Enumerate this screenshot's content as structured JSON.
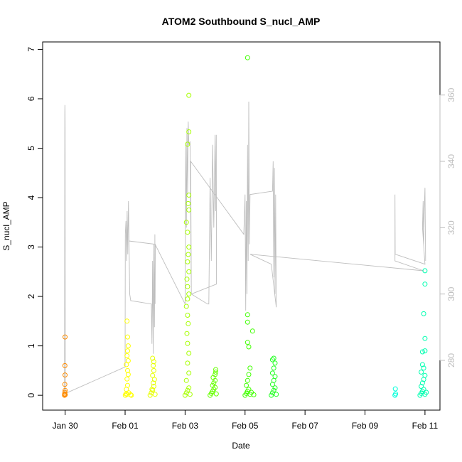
{
  "chart_data": {
    "type": "scatter",
    "title": "ATOM2 Southbound S_nucl_AMP",
    "xlabel": "Date",
    "ylabel": "S_nucl_AMP",
    "x_range": [
      "2023-01-29T06:00",
      "2023-02-11T12:00"
    ],
    "xticks": [
      {
        "x": "2023-01-30T00:00",
        "label": "Jan 30"
      },
      {
        "x": "2023-02-01T00:00",
        "label": "Feb 01"
      },
      {
        "x": "2023-02-03T00:00",
        "label": "Feb 03"
      },
      {
        "x": "2023-02-05T00:00",
        "label": "Feb 05"
      },
      {
        "x": "2023-02-07T00:00",
        "label": "Feb 07"
      },
      {
        "x": "2023-02-09T00:00",
        "label": "Feb 09"
      },
      {
        "x": "2023-02-11T00:00",
        "label": "Feb 11"
      }
    ],
    "ylim": [
      -0.3,
      7.15
    ],
    "yticks": [
      0,
      1,
      2,
      3,
      4,
      5,
      6,
      7
    ],
    "y2lim": [
      265,
      376
    ],
    "y2ticks": [
      280,
      300,
      320,
      340,
      360
    ],
    "grid": false,
    "legend": "none",
    "scatter_series": [
      {
        "color": "#ff8c00",
        "points": [
          {
            "x": "2023-01-29T23:30",
            "y": 0.0
          },
          {
            "x": "2023-01-29T23:40",
            "y": 0.03
          },
          {
            "x": "2023-01-29T23:50",
            "y": 0.06
          },
          {
            "x": "2023-01-30T00:00",
            "y": 0.1
          },
          {
            "x": "2023-01-29T23:45",
            "y": 0.22
          },
          {
            "x": "2023-01-29T23:55",
            "y": 0.41
          },
          {
            "x": "2023-01-29T23:50",
            "y": 0.6
          },
          {
            "x": "2023-01-29T23:55",
            "y": 1.18
          },
          {
            "x": "2023-01-29T23:35",
            "y": 0.02
          },
          {
            "x": "2023-01-30T00:05",
            "y": 0.01
          }
        ]
      },
      {
        "color": "#ffff00",
        "points": [
          {
            "x": "2023-02-01T00:10",
            "y": 0.0
          },
          {
            "x": "2023-02-01T01:30",
            "y": 0.02
          },
          {
            "x": "2023-02-01T03:00",
            "y": 0.05
          },
          {
            "x": "2023-02-01T04:30",
            "y": 0.01
          },
          {
            "x": "2023-02-01T01:00",
            "y": 0.12
          },
          {
            "x": "2023-02-01T02:00",
            "y": 0.2
          },
          {
            "x": "2023-02-01T01:30",
            "y": 0.33
          },
          {
            "x": "2023-02-01T02:30",
            "y": 0.42
          },
          {
            "x": "2023-02-01T02:00",
            "y": 0.5
          },
          {
            "x": "2023-02-01T01:00",
            "y": 0.62
          },
          {
            "x": "2023-02-01T02:30",
            "y": 0.7
          },
          {
            "x": "2023-02-01T01:30",
            "y": 0.8
          },
          {
            "x": "2023-02-01T02:00",
            "y": 0.9
          },
          {
            "x": "2023-02-01T02:30",
            "y": 1.0
          },
          {
            "x": "2023-02-01T02:00",
            "y": 1.18
          },
          {
            "x": "2023-02-01T01:30",
            "y": 1.5
          },
          {
            "x": "2023-02-01T05:00",
            "y": 0.0
          },
          {
            "x": "2023-02-01T00:40",
            "y": 0.03
          }
        ]
      },
      {
        "color": "#e6ff00",
        "points": [
          {
            "x": "2023-02-01T20:00",
            "y": 0.0
          },
          {
            "x": "2023-02-01T21:00",
            "y": 0.05
          },
          {
            "x": "2023-02-01T22:00",
            "y": 0.1
          },
          {
            "x": "2023-02-01T23:00",
            "y": 0.18
          },
          {
            "x": "2023-02-01T22:30",
            "y": 0.25
          },
          {
            "x": "2023-02-01T23:30",
            "y": 0.32
          },
          {
            "x": "2023-02-01T22:00",
            "y": 0.4
          },
          {
            "x": "2023-02-01T23:00",
            "y": 0.5
          },
          {
            "x": "2023-02-01T22:30",
            "y": 0.6
          },
          {
            "x": "2023-02-01T23:00",
            "y": 0.68
          },
          {
            "x": "2023-02-01T22:00",
            "y": 0.75
          },
          {
            "x": "2023-02-02T00:00",
            "y": 0.02
          },
          {
            "x": "2023-02-01T21:30",
            "y": 0.12
          }
        ]
      },
      {
        "color": "#a6ff00",
        "points": [
          {
            "x": "2023-02-03T00:00",
            "y": 0.0
          },
          {
            "x": "2023-02-03T01:00",
            "y": 0.05
          },
          {
            "x": "2023-02-03T02:00",
            "y": 0.1
          },
          {
            "x": "2023-02-03T03:00",
            "y": 0.15
          },
          {
            "x": "2023-02-03T01:00",
            "y": 0.3
          },
          {
            "x": "2023-02-03T03:00",
            "y": 0.45
          },
          {
            "x": "2023-02-03T02:00",
            "y": 0.65
          },
          {
            "x": "2023-02-03T03:00",
            "y": 0.85
          },
          {
            "x": "2023-02-03T02:00",
            "y": 1.05
          },
          {
            "x": "2023-02-03T01:30",
            "y": 1.25
          },
          {
            "x": "2023-02-03T02:30",
            "y": 1.45
          },
          {
            "x": "2023-02-03T02:00",
            "y": 1.62
          },
          {
            "x": "2023-02-03T01:00",
            "y": 1.8
          },
          {
            "x": "2023-02-03T02:00",
            "y": 1.95
          },
          {
            "x": "2023-02-03T03:00",
            "y": 2.05
          },
          {
            "x": "2023-02-03T02:00",
            "y": 2.2
          },
          {
            "x": "2023-02-03T01:30",
            "y": 2.35
          },
          {
            "x": "2023-02-03T03:00",
            "y": 2.5
          },
          {
            "x": "2023-02-03T02:00",
            "y": 2.7
          },
          {
            "x": "2023-02-03T02:30",
            "y": 2.85
          },
          {
            "x": "2023-02-03T03:00",
            "y": 3.0
          },
          {
            "x": "2023-02-03T02:00",
            "y": 3.3
          },
          {
            "x": "2023-02-03T01:00",
            "y": 3.5
          },
          {
            "x": "2023-02-03T03:00",
            "y": 3.75
          },
          {
            "x": "2023-02-03T02:30",
            "y": 3.88
          },
          {
            "x": "2023-02-03T03:00",
            "y": 4.05
          },
          {
            "x": "2023-02-03T02:00",
            "y": 5.08
          },
          {
            "x": "2023-02-03T03:00",
            "y": 5.33
          },
          {
            "x": "2023-02-03T03:00",
            "y": 6.07
          },
          {
            "x": "2023-02-03T04:00",
            "y": 0.02
          }
        ]
      },
      {
        "color": "#66ff00",
        "points": [
          {
            "x": "2023-02-03T20:00",
            "y": 0.0
          },
          {
            "x": "2023-02-03T21:00",
            "y": 0.04
          },
          {
            "x": "2023-02-03T22:00",
            "y": 0.08
          },
          {
            "x": "2023-02-03T23:00",
            "y": 0.12
          },
          {
            "x": "2023-02-04T00:00",
            "y": 0.16
          },
          {
            "x": "2023-02-03T22:00",
            "y": 0.2
          },
          {
            "x": "2023-02-03T23:00",
            "y": 0.25
          },
          {
            "x": "2023-02-04T00:00",
            "y": 0.3
          },
          {
            "x": "2023-02-03T22:30",
            "y": 0.36
          },
          {
            "x": "2023-02-04T00:00",
            "y": 0.42
          },
          {
            "x": "2023-02-04T00:30",
            "y": 0.47
          },
          {
            "x": "2023-02-04T00:30",
            "y": 0.52
          },
          {
            "x": "2023-02-04T01:00",
            "y": 0.03
          }
        ]
      },
      {
        "color": "#40ff00",
        "points": [
          {
            "x": "2023-02-05T00:00",
            "y": 0.0
          },
          {
            "x": "2023-02-05T01:00",
            "y": 0.04
          },
          {
            "x": "2023-02-05T02:00",
            "y": 0.08
          },
          {
            "x": "2023-02-05T03:00",
            "y": 0.12
          },
          {
            "x": "2023-02-05T04:00",
            "y": 0.02
          },
          {
            "x": "2023-02-05T05:00",
            "y": 0.06
          },
          {
            "x": "2023-02-05T01:00",
            "y": 0.2
          },
          {
            "x": "2023-02-05T02:00",
            "y": 0.3
          },
          {
            "x": "2023-02-05T03:00",
            "y": 0.42
          },
          {
            "x": "2023-02-05T04:00",
            "y": 0.55
          },
          {
            "x": "2023-02-05T03:00",
            "y": 0.98
          },
          {
            "x": "2023-02-05T02:00",
            "y": 1.07
          },
          {
            "x": "2023-02-05T06:00",
            "y": 1.3
          },
          {
            "x": "2023-02-05T02:00",
            "y": 1.48
          },
          {
            "x": "2023-02-05T02:00",
            "y": 1.63
          },
          {
            "x": "2023-02-05T02:00",
            "y": 6.83
          },
          {
            "x": "2023-02-05T07:00",
            "y": 0.01
          }
        ]
      },
      {
        "color": "#20ff20",
        "points": [
          {
            "x": "2023-02-05T21:00",
            "y": 0.0
          },
          {
            "x": "2023-02-05T22:00",
            "y": 0.05
          },
          {
            "x": "2023-02-05T23:00",
            "y": 0.1
          },
          {
            "x": "2023-02-06T00:00",
            "y": 0.15
          },
          {
            "x": "2023-02-05T22:00",
            "y": 0.22
          },
          {
            "x": "2023-02-05T23:00",
            "y": 0.3
          },
          {
            "x": "2023-02-06T00:00",
            "y": 0.38
          },
          {
            "x": "2023-02-05T22:00",
            "y": 0.45
          },
          {
            "x": "2023-02-05T23:00",
            "y": 0.55
          },
          {
            "x": "2023-02-06T00:00",
            "y": 0.65
          },
          {
            "x": "2023-02-05T23:00",
            "y": 0.75
          },
          {
            "x": "2023-02-05T22:00",
            "y": 0.72
          },
          {
            "x": "2023-02-06T01:00",
            "y": 0.02
          }
        ]
      },
      {
        "color": "#00ffd9",
        "points": [
          {
            "x": "2023-02-10T00:00",
            "y": 0.0
          },
          {
            "x": "2023-02-10T00:30",
            "y": 0.03
          },
          {
            "x": "2023-02-10T00:15",
            "y": 0.13
          }
        ]
      },
      {
        "color": "#00ffb0",
        "points": [
          {
            "x": "2023-02-10T20:00",
            "y": 0.0
          },
          {
            "x": "2023-02-10T21:00",
            "y": 0.04
          },
          {
            "x": "2023-02-10T22:00",
            "y": 0.08
          },
          {
            "x": "2023-02-10T23:00",
            "y": 0.12
          },
          {
            "x": "2023-02-11T00:00",
            "y": 0.02
          },
          {
            "x": "2023-02-11T01:00",
            "y": 0.06
          },
          {
            "x": "2023-02-10T21:00",
            "y": 0.18
          },
          {
            "x": "2023-02-10T22:00",
            "y": 0.25
          },
          {
            "x": "2023-02-10T23:00",
            "y": 0.32
          },
          {
            "x": "2023-02-11T00:00",
            "y": 0.4
          },
          {
            "x": "2023-02-10T21:00",
            "y": 0.47
          },
          {
            "x": "2023-02-10T23:00",
            "y": 0.55
          },
          {
            "x": "2023-02-10T22:00",
            "y": 0.62
          },
          {
            "x": "2023-02-10T22:00",
            "y": 0.88
          },
          {
            "x": "2023-02-11T00:00",
            "y": 0.9
          },
          {
            "x": "2023-02-11T00:00",
            "y": 1.15
          },
          {
            "x": "2023-02-10T23:00",
            "y": 1.65
          },
          {
            "x": "2023-02-11T00:00",
            "y": 2.25
          },
          {
            "x": "2023-02-11T00:00",
            "y": 2.52
          }
        ]
      }
    ],
    "line_series": {
      "axis": "right",
      "color": "#bebebe",
      "points": [
        {
          "x": "2023-01-29T23:30",
          "y": 270
        },
        {
          "x": "2023-01-29T23:45",
          "y": 355
        },
        {
          "x": "2023-01-29T23:50",
          "y": 357
        },
        {
          "x": "2023-01-29T23:55",
          "y": 353
        },
        {
          "x": "2023-01-30T00:00",
          "y": 350
        },
        {
          "x": "2023-01-30T00:05",
          "y": 270
        },
        {
          "x": "2023-02-01T00:00",
          "y": 278
        },
        {
          "x": "2023-02-01T00:10",
          "y": 318
        },
        {
          "x": "2023-02-01T00:40",
          "y": 322
        },
        {
          "x": "2023-02-01T01:10",
          "y": 310
        },
        {
          "x": "2023-02-01T01:40",
          "y": 325
        },
        {
          "x": "2023-02-01T02:10",
          "y": 312
        },
        {
          "x": "2023-02-01T02:40",
          "y": 328
        },
        {
          "x": "2023-02-01T03:10",
          "y": 315
        },
        {
          "x": "2023-02-01T03:40",
          "y": 300
        },
        {
          "x": "2023-02-01T04:30",
          "y": 298
        },
        {
          "x": "2023-02-01T21:00",
          "y": 297
        },
        {
          "x": "2023-02-01T21:30",
          "y": 285
        },
        {
          "x": "2023-02-01T22:00",
          "y": 310
        },
        {
          "x": "2023-02-01T22:30",
          "y": 282
        },
        {
          "x": "2023-02-01T23:00",
          "y": 315
        },
        {
          "x": "2023-02-01T23:30",
          "y": 290
        },
        {
          "x": "2023-02-01T23:50",
          "y": 318
        },
        {
          "x": "2023-02-02T00:00",
          "y": 297
        },
        {
          "x": "2023-02-02T00:10",
          "y": 315
        },
        {
          "x": "2023-02-01T03:00",
          "y": 316
        },
        {
          "x": "2023-02-02T00:00",
          "y": 315
        },
        {
          "x": "2023-02-03T00:00",
          "y": 297
        },
        {
          "x": "2023-02-03T00:30",
          "y": 345
        },
        {
          "x": "2023-02-03T01:00",
          "y": 320
        },
        {
          "x": "2023-02-03T01:30",
          "y": 350
        },
        {
          "x": "2023-02-03T02:00",
          "y": 330
        },
        {
          "x": "2023-02-03T02:30",
          "y": 352
        },
        {
          "x": "2023-02-03T03:00",
          "y": 345
        },
        {
          "x": "2023-02-03T04:00",
          "y": 346
        },
        {
          "x": "2023-02-03T05:00",
          "y": 300
        },
        {
          "x": "2023-02-03T18:00",
          "y": 297
        },
        {
          "x": "2023-02-03T19:00",
          "y": 297
        },
        {
          "x": "2023-02-03T20:00",
          "y": 335
        },
        {
          "x": "2023-02-03T21:00",
          "y": 310
        },
        {
          "x": "2023-02-03T22:00",
          "y": 345
        },
        {
          "x": "2023-02-03T23:00",
          "y": 320
        },
        {
          "x": "2023-02-04T00:00",
          "y": 348
        },
        {
          "x": "2023-02-04T00:30",
          "y": 325
        },
        {
          "x": "2023-02-04T01:00",
          "y": 348
        },
        {
          "x": "2023-02-04T01:10",
          "y": 303
        },
        {
          "x": "2023-02-03T05:00",
          "y": 300
        },
        {
          "x": "2023-02-03T04:30",
          "y": 340
        },
        {
          "x": "2023-02-04T23:00",
          "y": 318
        },
        {
          "x": "2023-02-05T00:00",
          "y": 330
        },
        {
          "x": "2023-02-05T00:30",
          "y": 295
        },
        {
          "x": "2023-02-05T01:00",
          "y": 328
        },
        {
          "x": "2023-02-05T01:30",
          "y": 300
        },
        {
          "x": "2023-02-05T02:00",
          "y": 345
        },
        {
          "x": "2023-02-05T02:30",
          "y": 310
        },
        {
          "x": "2023-02-05T03:00",
          "y": 358
        },
        {
          "x": "2023-02-05T03:30",
          "y": 315
        },
        {
          "x": "2023-02-05T04:00",
          "y": 330
        },
        {
          "x": "2023-02-05T22:00",
          "y": 331
        },
        {
          "x": "2023-02-05T22:30",
          "y": 340
        },
        {
          "x": "2023-02-05T23:00",
          "y": 305
        },
        {
          "x": "2023-02-05T23:30",
          "y": 338
        },
        {
          "x": "2023-02-06T00:00",
          "y": 300
        },
        {
          "x": "2023-02-06T00:30",
          "y": 330
        },
        {
          "x": "2023-02-06T01:00",
          "y": 296
        },
        {
          "x": "2023-02-05T21:00",
          "y": 309
        },
        {
          "x": "2023-02-05T04:00",
          "y": 312
        },
        {
          "x": "2023-02-10T23:00",
          "y": 307
        },
        {
          "x": "2023-02-10T00:00",
          "y": 310
        },
        {
          "x": "2023-02-10T00:00",
          "y": 330
        },
        {
          "x": "2023-02-10T00:10",
          "y": 312
        },
        {
          "x": "2023-02-11T00:00",
          "y": 309
        },
        {
          "x": "2023-02-10T22:00",
          "y": 320
        },
        {
          "x": "2023-02-10T22:30",
          "y": 328
        },
        {
          "x": "2023-02-10T23:00",
          "y": 315
        },
        {
          "x": "2023-02-10T23:30",
          "y": 326
        },
        {
          "x": "2023-02-11T00:00",
          "y": 332
        },
        {
          "x": "2023-02-11T00:30",
          "y": 310
        }
      ]
    }
  }
}
